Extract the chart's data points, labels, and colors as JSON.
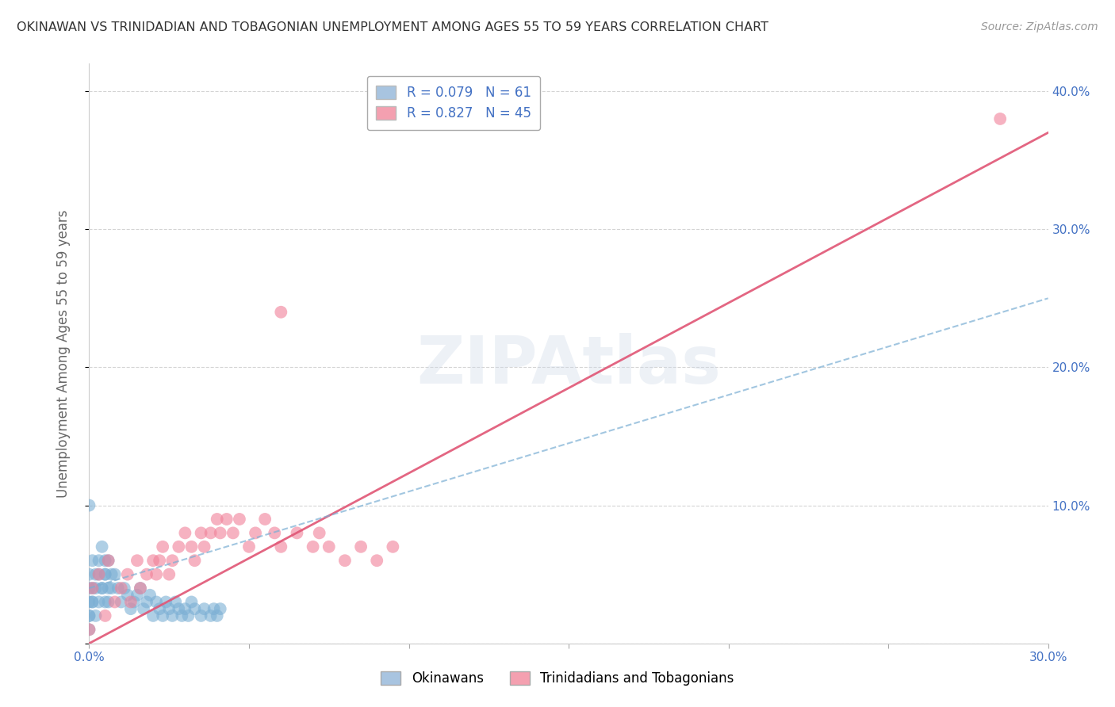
{
  "title": "OKINAWAN VS TRINIDADIAN AND TOBAGONIAN UNEMPLOYMENT AMONG AGES 55 TO 59 YEARS CORRELATION CHART",
  "source": "Source: ZipAtlas.com",
  "ylabel": "Unemployment Among Ages 55 to 59 years",
  "xlim": [
    0.0,
    0.3
  ],
  "ylim": [
    0.0,
    0.42
  ],
  "xticks": [
    0.0,
    0.05,
    0.1,
    0.15,
    0.2,
    0.25,
    0.3
  ],
  "yticks": [
    0.0,
    0.1,
    0.2,
    0.3,
    0.4
  ],
  "xtick_labels": [
    "0.0%",
    "",
    "",
    "",
    "",
    "",
    "30.0%"
  ],
  "ytick_labels_left": [
    "",
    "",
    "",
    "",
    ""
  ],
  "ytick_labels_right": [
    "",
    "10.0%",
    "20.0%",
    "30.0%",
    "40.0%"
  ],
  "legend_entries": [
    {
      "label": "R = 0.079   N = 61",
      "color": "#a8c4e0"
    },
    {
      "label": "R = 0.827   N = 45",
      "color": "#f4a0b0"
    }
  ],
  "bottom_legend": [
    "Okinawans",
    "Trinidadians and Tobagonians"
  ],
  "bottom_legend_colors": [
    "#a8c4e0",
    "#f4a0b0"
  ],
  "watermark": "ZIPAtlas",
  "okinawan_color": "#7bafd4",
  "trinidadian_color": "#f08098",
  "title_color": "#333333",
  "source_color": "#999999",
  "axis_color": "#666666",
  "right_axis_color": "#4472c4",
  "grid_color": "#d0d0d0",
  "background_color": "#ffffff",
  "trendline_pink_color": "#e05575",
  "trendline_blue_color": "#7bafd4",
  "okinawan_x": [
    0.0,
    0.002,
    0.003,
    0.004,
    0.005,
    0.005,
    0.006,
    0.007,
    0.008,
    0.009,
    0.01,
    0.011,
    0.012,
    0.013,
    0.014,
    0.015,
    0.016,
    0.017,
    0.018,
    0.019,
    0.02,
    0.021,
    0.022,
    0.023,
    0.024,
    0.025,
    0.026,
    0.027,
    0.028,
    0.029,
    0.03,
    0.031,
    0.032,
    0.033,
    0.035,
    0.036,
    0.038,
    0.039,
    0.04,
    0.041,
    0.0,
    0.0,
    0.001,
    0.001,
    0.002,
    0.003,
    0.004,
    0.005,
    0.006,
    0.007,
    0.0,
    0.0,
    0.001,
    0.002,
    0.003,
    0.004,
    0.005,
    0.006,
    0.0,
    0.0,
    0.001
  ],
  "okinawan_y": [
    0.1,
    0.02,
    0.03,
    0.04,
    0.05,
    0.06,
    0.03,
    0.04,
    0.05,
    0.04,
    0.03,
    0.04,
    0.035,
    0.025,
    0.03,
    0.035,
    0.04,
    0.025,
    0.03,
    0.035,
    0.02,
    0.03,
    0.025,
    0.02,
    0.03,
    0.025,
    0.02,
    0.03,
    0.025,
    0.02,
    0.025,
    0.02,
    0.03,
    0.025,
    0.02,
    0.025,
    0.02,
    0.025,
    0.02,
    0.025,
    0.03,
    0.05,
    0.04,
    0.06,
    0.05,
    0.06,
    0.07,
    0.05,
    0.06,
    0.05,
    0.02,
    0.04,
    0.03,
    0.04,
    0.05,
    0.04,
    0.03,
    0.04,
    0.01,
    0.02,
    0.03
  ],
  "trinidadian_x": [
    0.0,
    0.005,
    0.008,
    0.01,
    0.012,
    0.013,
    0.015,
    0.016,
    0.018,
    0.02,
    0.021,
    0.022,
    0.023,
    0.025,
    0.026,
    0.028,
    0.03,
    0.032,
    0.033,
    0.035,
    0.036,
    0.038,
    0.04,
    0.041,
    0.043,
    0.045,
    0.047,
    0.05,
    0.052,
    0.055,
    0.058,
    0.06,
    0.065,
    0.07,
    0.072,
    0.075,
    0.08,
    0.085,
    0.09,
    0.095,
    0.001,
    0.003,
    0.006,
    0.285,
    0.06
  ],
  "trinidadian_y": [
    0.01,
    0.02,
    0.03,
    0.04,
    0.05,
    0.03,
    0.06,
    0.04,
    0.05,
    0.06,
    0.05,
    0.06,
    0.07,
    0.05,
    0.06,
    0.07,
    0.08,
    0.07,
    0.06,
    0.08,
    0.07,
    0.08,
    0.09,
    0.08,
    0.09,
    0.08,
    0.09,
    0.07,
    0.08,
    0.09,
    0.08,
    0.07,
    0.08,
    0.07,
    0.08,
    0.07,
    0.06,
    0.07,
    0.06,
    0.07,
    0.04,
    0.05,
    0.06,
    0.38,
    0.24
  ],
  "trendline_pink_x0": 0.0,
  "trendline_pink_y0": 0.0,
  "trendline_pink_x1": 0.3,
  "trendline_pink_y1": 0.37,
  "trendline_blue_x0": 0.0,
  "trendline_blue_y0": 0.04,
  "trendline_blue_x1": 0.3,
  "trendline_blue_y1": 0.25
}
